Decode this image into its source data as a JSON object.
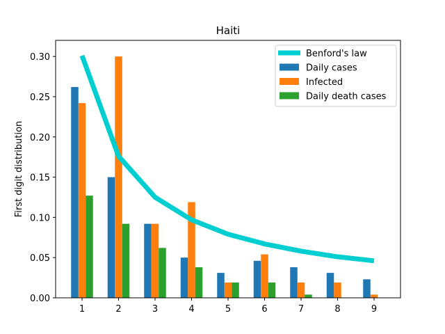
{
  "chart_data": {
    "type": "bar",
    "title": "Haiti",
    "xlabel": "",
    "ylabel": "First digit distribution",
    "categories": [
      "1",
      "2",
      "3",
      "4",
      "5",
      "6",
      "7",
      "8",
      "9"
    ],
    "ylim": [
      0,
      0.32
    ],
    "yticks": [
      "0.00",
      "0.05",
      "0.10",
      "0.15",
      "0.20",
      "0.25",
      "0.30"
    ],
    "series": [
      {
        "name": "Daily cases",
        "color": "#1f77b4",
        "values": [
          0.262,
          0.15,
          0.092,
          0.05,
          0.031,
          0.046,
          0.038,
          0.031,
          0.023
        ]
      },
      {
        "name": "Infected",
        "color": "#ff7f0e",
        "values": [
          0.242,
          0.3,
          0.092,
          0.119,
          0.019,
          0.054,
          0.019,
          0.019,
          0.004
        ]
      },
      {
        "name": "Daily death cases",
        "color": "#2ca02c",
        "values": [
          0.127,
          0.092,
          0.062,
          0.038,
          0.019,
          0.019,
          0.004,
          0.0,
          0.0
        ]
      }
    ],
    "line": {
      "name": "Benford's law",
      "color": "#00ced1",
      "values": [
        0.301,
        0.176,
        0.125,
        0.097,
        0.079,
        0.067,
        0.058,
        0.051,
        0.046
      ]
    },
    "legend": "top-right",
    "grid": false
  }
}
